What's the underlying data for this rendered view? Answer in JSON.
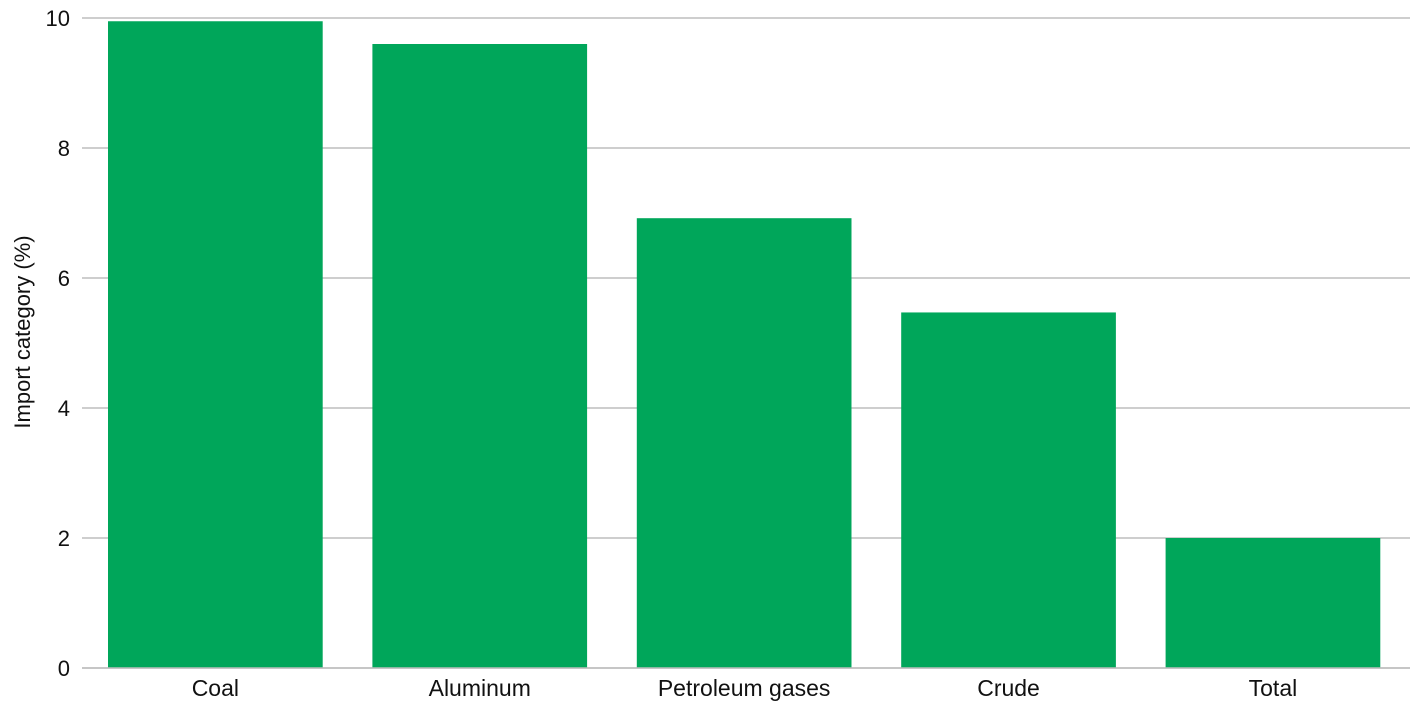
{
  "chart_data": {
    "type": "bar",
    "categories": [
      "Coal",
      "Aluminum",
      "Petroleum gases",
      "Crude",
      "Total"
    ],
    "values": [
      9.95,
      9.6,
      6.92,
      5.47,
      2.0
    ],
    "title": "",
    "xlabel": "",
    "ylabel": "Import category (%)",
    "ylim": [
      0,
      10
    ],
    "yticks": [
      "0",
      "2",
      "4",
      "6",
      "8",
      "10"
    ],
    "grid": true,
    "legend": "none",
    "bar_color": "#00a65a",
    "grid_color": "#bdbdbd"
  }
}
